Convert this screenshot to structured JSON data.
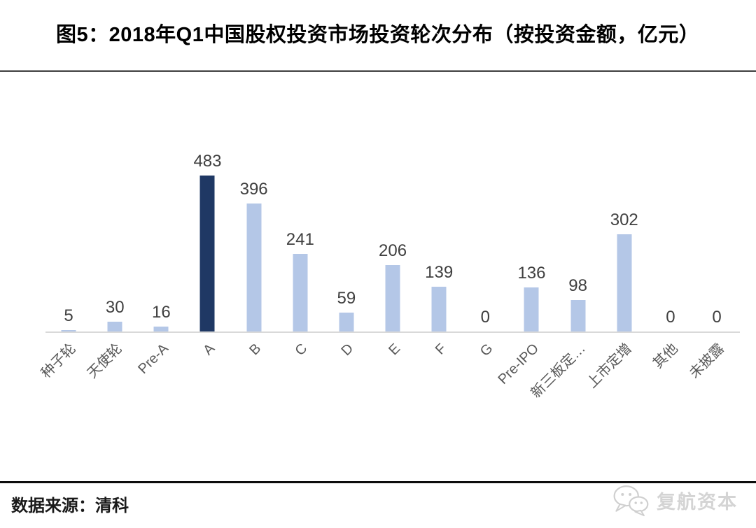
{
  "title": "图5：2018年Q1中国股权投资市场投资轮次分布（按投资金额，亿元）",
  "chart_data": {
    "type": "bar",
    "title": "2018年Q1中国股权投资市场投资轮次分布（按投资金额，亿元）",
    "categories": [
      "种子轮",
      "天使轮",
      "Pre-A",
      "A",
      "B",
      "C",
      "D",
      "E",
      "F",
      "G",
      "Pre-IPO",
      "新三板定…",
      "上市定增",
      "其他",
      "未披露"
    ],
    "values": [
      5,
      30,
      16,
      483,
      396,
      241,
      59,
      206,
      139,
      0,
      136,
      98,
      302,
      0,
      0
    ],
    "xlabel": "",
    "ylabel": "",
    "unit": "亿元",
    "ylim": [
      0,
      520
    ],
    "grid": false,
    "legend": "none",
    "data_labels": true,
    "bar_color": "#b4c7e7",
    "highlight_color": "#1f3864",
    "highlight_index": 3
  },
  "footer": {
    "source": "数据来源：清科",
    "brand": "复航资本",
    "brand_icon": "wechat-chat-bubbles-icon"
  },
  "colors": {
    "value_label": "#404040",
    "axis_label": "#595959",
    "axis_line": "#d9d9d9"
  }
}
